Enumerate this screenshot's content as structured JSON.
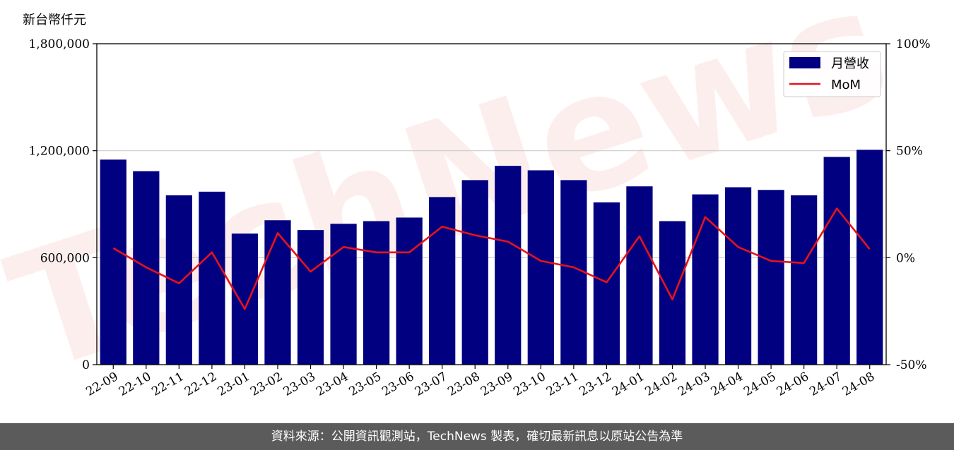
{
  "unit_label": "新台幣仟元",
  "footer_text": "資料來源：公開資訊觀測站，TechNews 製表，確切最新訊息以原站公告為準",
  "watermark_text": "TechNews",
  "colors": {
    "bar": "#000080",
    "line": "#e8121a",
    "grid": "#cccccc",
    "footer_bg": "#5b5b5b"
  },
  "chart_data": {
    "type": "bar",
    "categories": [
      "22-09",
      "22-10",
      "22-11",
      "22-12",
      "23-01",
      "23-02",
      "23-03",
      "23-04",
      "23-05",
      "23-06",
      "23-07",
      "23-08",
      "23-09",
      "23-10",
      "23-11",
      "23-12",
      "24-01",
      "24-02",
      "24-03",
      "24-04",
      "24-05",
      "24-06",
      "24-07",
      "24-08"
    ],
    "series": [
      {
        "name": "月營收",
        "type": "bar",
        "axis": "left",
        "values": [
          1150000,
          1085000,
          950000,
          970000,
          735000,
          810000,
          755000,
          790000,
          805000,
          825000,
          940000,
          1035000,
          1115000,
          1090000,
          1035000,
          910000,
          1000000,
          805000,
          955000,
          995000,
          980000,
          950000,
          1165000,
          1205000
        ]
      },
      {
        "name": "MoM",
        "type": "line",
        "axis": "right",
        "unit": "%",
        "values": [
          4.5,
          -4.5,
          -12,
          2.5,
          -24,
          11.5,
          -6.5,
          5,
          2.5,
          2.5,
          14.5,
          10.5,
          7.5,
          -1.5,
          -4.5,
          -11.5,
          10,
          -19.5,
          19,
          5,
          -1.5,
          -2.5,
          23,
          4
        ]
      }
    ],
    "y_left": {
      "min": 0,
      "max": 1800000,
      "ticks": [
        0,
        600000,
        1200000,
        1800000
      ],
      "tick_labels": [
        "0",
        "600,000",
        "1,200,000",
        "1,800,000"
      ]
    },
    "y_right": {
      "min": -50,
      "max": 100,
      "ticks": [
        -50,
        0,
        50,
        100
      ],
      "tick_labels": [
        "-50%",
        "0%",
        "50%",
        "100%"
      ]
    },
    "grid": "horizontal",
    "legend_position": "top-right"
  }
}
